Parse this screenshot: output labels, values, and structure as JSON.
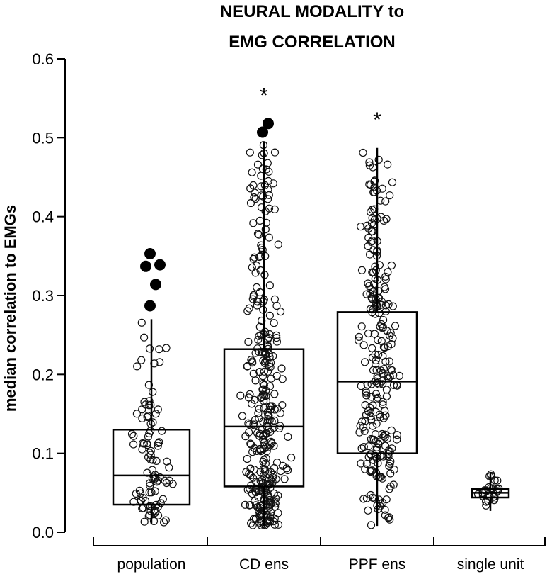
{
  "chart_data": {
    "type": "box",
    "title": [
      "NEURAL MODALITY to",
      "EMG CORRELATION"
    ],
    "xlabel": "",
    "ylabel": "median correlation to EMGs",
    "ylim": [
      0,
      0.6
    ],
    "yticks": [
      "0.0",
      "0.1",
      "0.2",
      "0.3",
      "0.4",
      "0.5",
      "0.6"
    ],
    "categories": [
      "population",
      "CD ens",
      "PPF ens",
      "single unit"
    ],
    "significance": [
      "",
      "*",
      "*",
      ""
    ],
    "boxes": [
      {
        "name": "population",
        "whisker_low": 0.01,
        "q1": 0.035,
        "median": 0.072,
        "q3": 0.13,
        "whisker_high": 0.27,
        "outliers": [
          0.287,
          0.314,
          0.337,
          0.339,
          0.353
        ]
      },
      {
        "name": "CD ens",
        "whisker_low": 0.008,
        "q1": 0.058,
        "median": 0.134,
        "q3": 0.232,
        "whisker_high": 0.495,
        "outliers": [
          0.507,
          0.518
        ]
      },
      {
        "name": "PPF ens",
        "whisker_low": 0.008,
        "q1": 0.1,
        "median": 0.191,
        "q3": 0.279,
        "whisker_high": 0.487,
        "outliers": []
      },
      {
        "name": "single unit",
        "whisker_low": 0.027,
        "q1": 0.044,
        "median": 0.05,
        "q3": 0.055,
        "whisker_high": 0.076,
        "outliers": []
      }
    ],
    "point_counts": [
      95,
      330,
      260,
      28
    ]
  }
}
